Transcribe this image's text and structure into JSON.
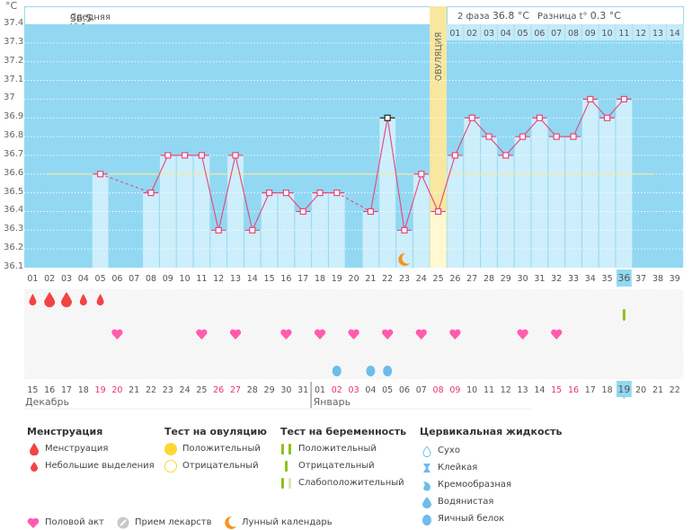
{
  "header": {
    "unit": "°C",
    "phase1_label": "Средняя t° 1 фаза",
    "phase1_value": "36.5 °C",
    "phase2_label": "2 фаза",
    "phase2_value": "36.8 °C",
    "diff_label": "Разница t°",
    "diff_value": "0.3 °C",
    "ovulation_label": "ОВУЛЯЦИЯ"
  },
  "chart_data": {
    "type": "line",
    "title": "",
    "ylabel": "°C",
    "ylim": [
      36.1,
      37.4
    ],
    "yticks": [
      "37.4",
      "37.3",
      "37.2",
      "37.1",
      "37",
      "36.9",
      "36.8",
      "36.7",
      "36.6",
      "36.5",
      "36.4",
      "36.3",
      "36.2",
      "36.1"
    ],
    "cycle_days": [
      "01",
      "02",
      "03",
      "04",
      "05",
      "06",
      "07",
      "08",
      "09",
      "10",
      "11",
      "12",
      "13",
      "14",
      "15",
      "16",
      "17",
      "18",
      "19",
      "20",
      "21",
      "22",
      "23",
      "24",
      "25",
      "26",
      "27",
      "28",
      "29",
      "30",
      "31",
      "32",
      "33",
      "34",
      "35",
      "36",
      "37",
      "38",
      "39"
    ],
    "temperatures": [
      null,
      null,
      null,
      null,
      36.6,
      null,
      null,
      36.5,
      36.7,
      36.7,
      36.7,
      36.3,
      36.7,
      36.3,
      36.5,
      36.5,
      36.4,
      36.5,
      36.5,
      null,
      36.4,
      36.9,
      36.3,
      36.6,
      36.4,
      36.7,
      36.9,
      36.8,
      36.7,
      36.8,
      36.9,
      36.8,
      36.8,
      37.0,
      36.9,
      37.0,
      null,
      null,
      null
    ],
    "coverline": 36.6,
    "ovulation_day": 25,
    "current_day": 36,
    "excluded_point_day": 22,
    "phase2_days": [
      "01",
      "02",
      "03",
      "04",
      "05",
      "06",
      "07",
      "08",
      "09",
      "10",
      "11",
      "12",
      "13",
      "14"
    ],
    "calendar_dates": [
      "15",
      "16",
      "17",
      "18",
      "19",
      "20",
      "21",
      "22",
      "23",
      "24",
      "25",
      "26",
      "27",
      "28",
      "29",
      "30",
      "31",
      "01",
      "02",
      "03",
      "04",
      "05",
      "06",
      "07",
      "08",
      "09",
      "10",
      "11",
      "12",
      "13",
      "14",
      "15",
      "16",
      "17",
      "18",
      "19",
      "20",
      "21",
      "22"
    ],
    "weekend_dates_idx": [
      4,
      5,
      11,
      12,
      18,
      19,
      24,
      25,
      31,
      32
    ],
    "months": [
      {
        "name": "Декабрь",
        "start_idx": 0
      },
      {
        "name": "Январь",
        "start_idx": 17
      }
    ],
    "menstruation": [
      {
        "day": 1,
        "size": "small"
      },
      {
        "day": 2,
        "size": "large"
      },
      {
        "day": 3,
        "size": "large"
      },
      {
        "day": 4,
        "size": "small"
      },
      {
        "day": 5,
        "size": "small"
      }
    ],
    "pregnancy_test": [
      {
        "day": 36,
        "result": "negative"
      }
    ],
    "intercourse_days": [
      6,
      11,
      13,
      16,
      18,
      20,
      22,
      24,
      26,
      30,
      32
    ],
    "cervical_fluid": [
      {
        "day": 19,
        "type": "egg-white"
      },
      {
        "day": 21,
        "type": "egg-white"
      },
      {
        "day": 22,
        "type": "egg-white"
      }
    ],
    "moon_days": [
      23
    ]
  },
  "legend": {
    "menstruation": {
      "title": "Менструация",
      "items": [
        "Менструация",
        "Небольшие выделения"
      ]
    },
    "ovulation_test": {
      "title": "Тест на овуляцию",
      "items": [
        "Положительный",
        "Отрицательный"
      ]
    },
    "pregnancy_test": {
      "title": "Тест на беременность",
      "items": [
        "Положительный",
        "Отрицательный",
        "Слабоположительный"
      ]
    },
    "cervical": {
      "title": "Цервикальная жидкость",
      "items": [
        "Сухо",
        "Клейкая",
        "Кремообразная",
        "Водянистая",
        "Яичный белок"
      ]
    },
    "other": [
      "Половой акт",
      "Прием лекарств",
      "Лунный календарь"
    ]
  },
  "colors": {
    "plot_bg": "#92d8f2",
    "bar": "#cdeefb",
    "line": "#e8457a",
    "coverline": "#f3e9a0",
    "ovulation": "#f7e7a0",
    "weekend": "#e8336a",
    "heart": "#ff5cb0",
    "drop": "#f44343",
    "fluid": "#6cbcec",
    "preg": "#8cc21a",
    "sun": "#fdd835",
    "moon": "#f5941d"
  }
}
